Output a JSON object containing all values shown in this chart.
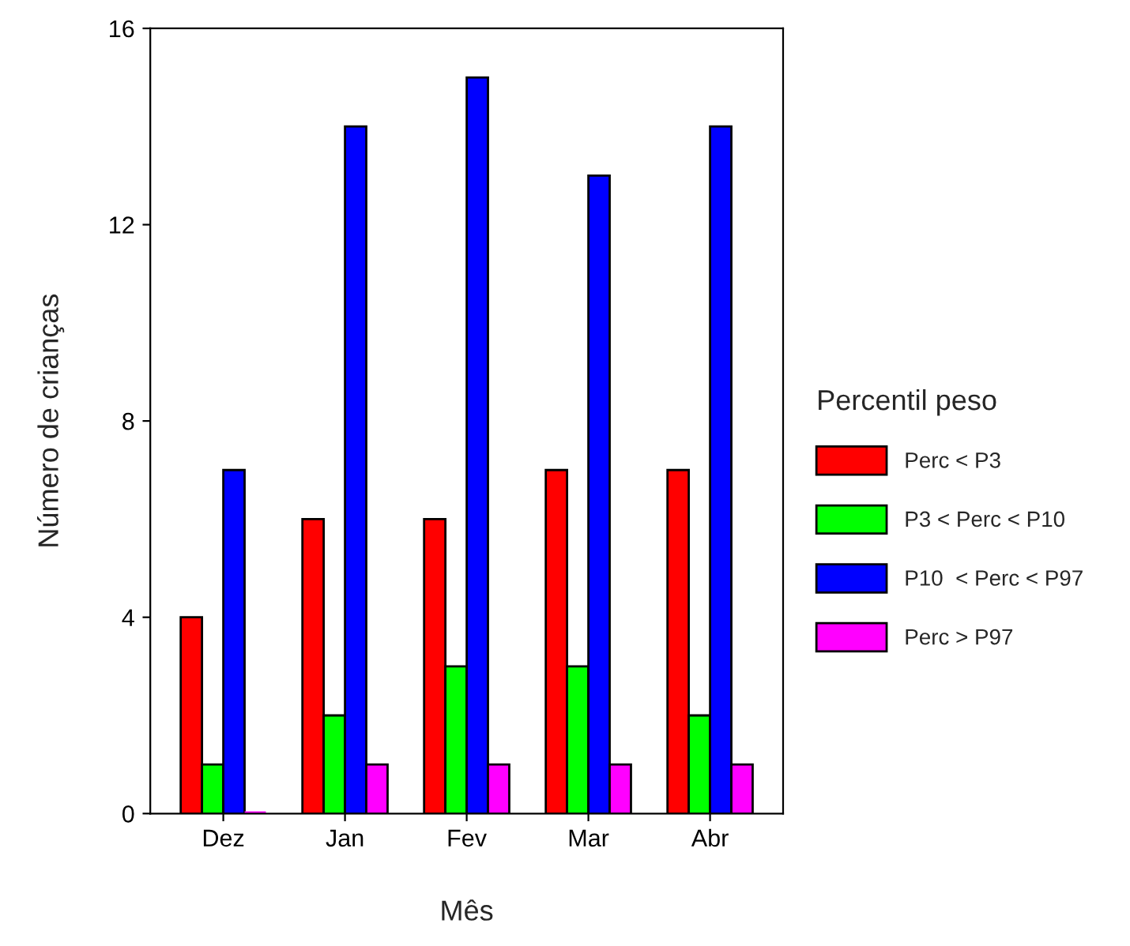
{
  "chart_data": {
    "type": "bar",
    "xlabel": "Mês",
    "ylabel": "Número de crianças",
    "legend_title": "Percentil peso",
    "categories": [
      "Dez",
      "Jan",
      "Fev",
      "Mar",
      "Abr"
    ],
    "series": [
      {
        "name": "Perc < P3",
        "color": "#ff0000",
        "values": [
          4,
          6,
          6,
          7,
          7
        ]
      },
      {
        "name": "P3 < Perc < P10",
        "color": "#00ff00",
        "values": [
          1,
          2,
          3,
          3,
          2
        ]
      },
      {
        "name": "P10  < Perc < P97",
        "color": "#0000ff",
        "values": [
          7,
          14,
          15,
          13,
          14
        ]
      },
      {
        "name": "Perc > P97",
        "color": "#ff00ff",
        "values": [
          0,
          1,
          1,
          1,
          1
        ]
      }
    ],
    "ylim": [
      0,
      16
    ],
    "yticks": [
      0,
      4,
      8,
      12,
      16
    ],
    "grid": false,
    "legend": "right"
  }
}
